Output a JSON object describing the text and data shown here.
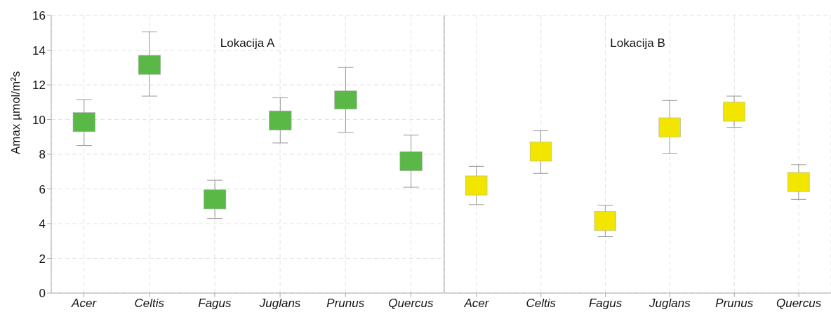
{
  "chart_data": [
    {
      "type": "box",
      "title": "Lokacija A",
      "ylabel": "Amax µmol/m²s",
      "categories": [
        "Acer",
        "Celtis",
        "Fagus",
        "Juglans",
        "Prunus",
        "Quercus"
      ],
      "color": "#5ab946",
      "ylim": [
        0,
        16
      ],
      "yticks": [
        0,
        2,
        4,
        6,
        8,
        10,
        12,
        14,
        16
      ],
      "grid": true,
      "boxes": [
        {
          "low": 8.5,
          "q1": 9.3,
          "median": 9.85,
          "q3": 10.4,
          "high": 11.15
        },
        {
          "low": 11.35,
          "q1": 12.6,
          "median": 13.15,
          "q3": 13.7,
          "high": 15.05
        },
        {
          "low": 4.3,
          "q1": 4.85,
          "median": 5.4,
          "q3": 5.95,
          "high": 6.5
        },
        {
          "low": 8.65,
          "q1": 9.4,
          "median": 9.95,
          "q3": 10.5,
          "high": 11.25
        },
        {
          "low": 9.25,
          "q1": 10.6,
          "median": 11.1,
          "q3": 11.65,
          "high": 13.0
        },
        {
          "low": 6.1,
          "q1": 7.05,
          "median": 7.6,
          "q3": 8.15,
          "high": 9.1
        }
      ]
    },
    {
      "type": "box",
      "title": "Lokacija B",
      "categories": [
        "Acer",
        "Celtis",
        "Fagus",
        "Juglans",
        "Prunus",
        "Quercus"
      ],
      "color": "#f2e600",
      "ylim": [
        0,
        16
      ],
      "yticks": [
        0,
        2,
        4,
        6,
        8,
        10,
        12,
        14,
        16
      ],
      "grid": true,
      "tick_labels": "x",
      "boxes": [
        {
          "low": 5.1,
          "q1": 5.65,
          "median": 6.2,
          "q3": 6.75,
          "high": 7.3
        },
        {
          "low": 6.9,
          "q1": 7.6,
          "median": 8.15,
          "q3": 8.7,
          "high": 9.35
        },
        {
          "low": 3.25,
          "q1": 3.6,
          "median": 4.15,
          "q3": 4.7,
          "high": 5.05
        },
        {
          "low": 8.05,
          "q1": 9.0,
          "median": 9.55,
          "q3": 10.1,
          "high": 11.1
        },
        {
          "low": 9.55,
          "q1": 9.9,
          "median": 10.45,
          "q3": 11.0,
          "high": 11.35
        },
        {
          "low": 5.4,
          "q1": 5.85,
          "median": 6.4,
          "q3": 6.95,
          "high": 7.4
        }
      ]
    }
  ]
}
